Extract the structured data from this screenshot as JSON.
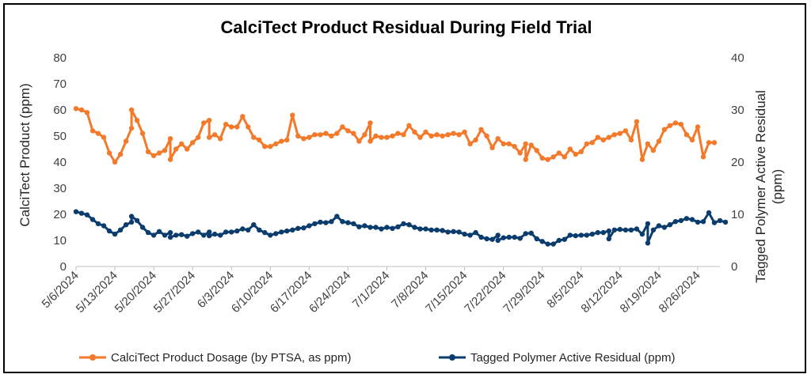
{
  "chart_data": {
    "type": "line",
    "title": "CalciTect Product Residual During Field Trial",
    "ylabel": "CalciTect Product (ppm)",
    "y2label_line1": "Tagged Polymer Active Residual",
    "y2label_line2": "(ppm)",
    "ylim": [
      0,
      80
    ],
    "y2lim": [
      0,
      40
    ],
    "yticks": [
      0,
      10,
      20,
      30,
      40,
      50,
      60,
      70,
      80
    ],
    "y2ticks": [
      0,
      10,
      20,
      30,
      40
    ],
    "x_start": "5/6/2024",
    "x_end": "8/30/2024",
    "xticks": [
      "5/6/2024",
      "5/13/2024",
      "5/20/2024",
      "5/27/2024",
      "6/3/2024",
      "6/10/2024",
      "6/17/2024",
      "6/24/2024",
      "7/1/2024",
      "7/8/2024",
      "7/15/2024",
      "7/22/2024",
      "7/29/2024",
      "8/5/2024",
      "8/12/2024",
      "8/19/2024",
      "8/26/2024"
    ],
    "grid": false,
    "legend_position": "bottom",
    "series": [
      {
        "name": "CalciTect Product Dosage (by PTSA, as ppm)",
        "axis": "left",
        "color": "#F47A2B",
        "points": [
          [
            "5/6/2024",
            60.5
          ],
          [
            "5/7/2024",
            60.0
          ],
          [
            "5/8/2024",
            59.0
          ],
          [
            "5/9/2024",
            52.0
          ],
          [
            "5/10/2024",
            51.0
          ],
          [
            "5/11/2024",
            49.5
          ],
          [
            "5/12/2024",
            43.5
          ],
          [
            "5/13/2024",
            40.0
          ],
          [
            "5/14/2024",
            43.0
          ],
          [
            "5/15/2024",
            48.0
          ],
          [
            "5/16/2024",
            53.0
          ],
          [
            "5/16/2024",
            60.0
          ],
          [
            "5/17/2024",
            56.0
          ],
          [
            "5/18/2024",
            51.0
          ],
          [
            "5/19/2024",
            44.0
          ],
          [
            "5/20/2024",
            42.5
          ],
          [
            "5/21/2024",
            43.5
          ],
          [
            "5/22/2024",
            44.5
          ],
          [
            "5/23/2024",
            49.0
          ],
          [
            "5/23/2024",
            41.0
          ],
          [
            "5/24/2024",
            45.0
          ],
          [
            "5/25/2024",
            47.0
          ],
          [
            "5/26/2024",
            45.0
          ],
          [
            "5/27/2024",
            47.5
          ],
          [
            "5/28/2024",
            49.5
          ],
          [
            "5/29/2024",
            55.0
          ],
          [
            "5/30/2024",
            56.0
          ],
          [
            "5/30/2024",
            49.5
          ],
          [
            "5/31/2024",
            50.5
          ],
          [
            "6/1/2024",
            49.0
          ],
          [
            "6/2/2024",
            54.5
          ],
          [
            "6/3/2024",
            53.5
          ],
          [
            "6/4/2024",
            53.5
          ],
          [
            "6/5/2024",
            57.5
          ],
          [
            "6/6/2024",
            53.5
          ],
          [
            "6/7/2024",
            49.5
          ],
          [
            "6/8/2024",
            48.5
          ],
          [
            "6/9/2024",
            46.0
          ],
          [
            "6/10/2024",
            46.0
          ],
          [
            "6/11/2024",
            47.0
          ],
          [
            "6/12/2024",
            48.0
          ],
          [
            "6/13/2024",
            48.5
          ],
          [
            "6/14/2024",
            58.0
          ],
          [
            "6/15/2024",
            50.0
          ],
          [
            "6/16/2024",
            49.0
          ],
          [
            "6/17/2024",
            49.5
          ],
          [
            "6/18/2024",
            50.5
          ],
          [
            "6/19/2024",
            50.5
          ],
          [
            "6/20/2024",
            51.0
          ],
          [
            "6/21/2024",
            50.0
          ],
          [
            "6/22/2024",
            51.0
          ],
          [
            "6/23/2024",
            53.5
          ],
          [
            "6/24/2024",
            52.0
          ],
          [
            "6/25/2024",
            51.0
          ],
          [
            "6/26/2024",
            48.0
          ],
          [
            "6/27/2024",
            50.5
          ],
          [
            "6/28/2024",
            55.0
          ],
          [
            "6/28/2024",
            48.0
          ],
          [
            "6/29/2024",
            50.0
          ],
          [
            "6/30/2024",
            49.5
          ],
          [
            "7/1/2024",
            49.5
          ],
          [
            "7/2/2024",
            50.0
          ],
          [
            "7/3/2024",
            51.0
          ],
          [
            "7/4/2024",
            50.5
          ],
          [
            "7/5/2024",
            54.0
          ],
          [
            "7/6/2024",
            51.5
          ],
          [
            "7/7/2024",
            49.5
          ],
          [
            "7/8/2024",
            51.5
          ],
          [
            "7/9/2024",
            50.0
          ],
          [
            "7/10/2024",
            50.5
          ],
          [
            "7/11/2024",
            50.0
          ],
          [
            "7/12/2024",
            50.5
          ],
          [
            "7/13/2024",
            51.0
          ],
          [
            "7/14/2024",
            50.5
          ],
          [
            "7/15/2024",
            51.5
          ],
          [
            "7/16/2024",
            47.0
          ],
          [
            "7/17/2024",
            48.5
          ],
          [
            "7/18/2024",
            52.5
          ],
          [
            "7/19/2024",
            50.0
          ],
          [
            "7/20/2024",
            45.5
          ],
          [
            "7/21/2024",
            49.0
          ],
          [
            "7/22/2024",
            47.0
          ],
          [
            "7/23/2024",
            47.0
          ],
          [
            "7/24/2024",
            46.0
          ],
          [
            "7/25/2024",
            43.5
          ],
          [
            "7/26/2024",
            47.0
          ],
          [
            "7/26/2024",
            41.0
          ],
          [
            "7/27/2024",
            46.5
          ],
          [
            "7/28/2024",
            44.5
          ],
          [
            "7/29/2024",
            41.5
          ],
          [
            "7/30/2024",
            41.0
          ],
          [
            "7/31/2024",
            42.0
          ],
          [
            "8/1/2024",
            43.5
          ],
          [
            "8/2/2024",
            42.0
          ],
          [
            "8/3/2024",
            45.0
          ],
          [
            "8/4/2024",
            43.0
          ],
          [
            "8/5/2024",
            44.0
          ],
          [
            "8/6/2024",
            47.0
          ],
          [
            "8/7/2024",
            47.5
          ],
          [
            "8/8/2024",
            49.5
          ],
          [
            "8/9/2024",
            48.5
          ],
          [
            "8/10/2024",
            49.5
          ],
          [
            "8/11/2024",
            50.5
          ],
          [
            "8/12/2024",
            51.0
          ],
          [
            "8/13/2024",
            52.0
          ],
          [
            "8/14/2024",
            48.5
          ],
          [
            "8/15/2024",
            55.5
          ],
          [
            "8/16/2024",
            41.0
          ],
          [
            "8/17/2024",
            47.0
          ],
          [
            "8/18/2024",
            44.5
          ],
          [
            "8/19/2024",
            48.0
          ],
          [
            "8/20/2024",
            52.5
          ],
          [
            "8/21/2024",
            54.0
          ],
          [
            "8/22/2024",
            55.0
          ],
          [
            "8/23/2024",
            54.5
          ],
          [
            "8/24/2024",
            50.5
          ],
          [
            "8/25/2024",
            48.5
          ],
          [
            "8/26/2024",
            53.5
          ],
          [
            "8/27/2024",
            42.0
          ],
          [
            "8/28/2024",
            47.5
          ],
          [
            "8/29/2024",
            47.5
          ]
        ]
      },
      {
        "name": "Tagged Polymer Active Residual (ppm)",
        "axis": "right",
        "color": "#0B3C6E",
        "points": [
          [
            "5/6/2024",
            10.5
          ],
          [
            "5/7/2024",
            10.2
          ],
          [
            "5/8/2024",
            9.9
          ],
          [
            "5/9/2024",
            9.0
          ],
          [
            "5/10/2024",
            8.2
          ],
          [
            "5/11/2024",
            7.8
          ],
          [
            "5/12/2024",
            6.8
          ],
          [
            "5/13/2024",
            6.2
          ],
          [
            "5/14/2024",
            7.0
          ],
          [
            "5/15/2024",
            8.0
          ],
          [
            "5/16/2024",
            8.5
          ],
          [
            "5/16/2024",
            9.6
          ],
          [
            "5/17/2024",
            8.8
          ],
          [
            "5/18/2024",
            7.5
          ],
          [
            "5/19/2024",
            6.5
          ],
          [
            "5/20/2024",
            6.0
          ],
          [
            "5/21/2024",
            6.7
          ],
          [
            "5/22/2024",
            6.0
          ],
          [
            "5/23/2024",
            6.5
          ],
          [
            "5/23/2024",
            5.6
          ],
          [
            "5/24/2024",
            6.0
          ],
          [
            "5/25/2024",
            6.1
          ],
          [
            "5/26/2024",
            5.8
          ],
          [
            "5/27/2024",
            6.3
          ],
          [
            "5/28/2024",
            6.6
          ],
          [
            "5/29/2024",
            6.0
          ],
          [
            "5/30/2024",
            6.6
          ],
          [
            "5/30/2024",
            5.9
          ],
          [
            "5/31/2024",
            6.2
          ],
          [
            "6/1/2024",
            6.0
          ],
          [
            "6/2/2024",
            6.6
          ],
          [
            "6/3/2024",
            6.6
          ],
          [
            "6/4/2024",
            6.8
          ],
          [
            "6/5/2024",
            7.2
          ],
          [
            "6/6/2024",
            7.0
          ],
          [
            "6/7/2024",
            8.0
          ],
          [
            "6/8/2024",
            7.0
          ],
          [
            "6/9/2024",
            6.5
          ],
          [
            "6/10/2024",
            6.0
          ],
          [
            "6/11/2024",
            6.3
          ],
          [
            "6/12/2024",
            6.6
          ],
          [
            "6/13/2024",
            6.8
          ],
          [
            "6/14/2024",
            7.0
          ],
          [
            "6/15/2024",
            7.3
          ],
          [
            "6/16/2024",
            7.4
          ],
          [
            "6/17/2024",
            7.8
          ],
          [
            "6/18/2024",
            8.2
          ],
          [
            "6/19/2024",
            8.5
          ],
          [
            "6/20/2024",
            8.4
          ],
          [
            "6/21/2024",
            8.6
          ],
          [
            "6/22/2024",
            9.6
          ],
          [
            "6/23/2024",
            8.6
          ],
          [
            "6/24/2024",
            8.4
          ],
          [
            "6/25/2024",
            8.2
          ],
          [
            "6/26/2024",
            7.6
          ],
          [
            "6/27/2024",
            7.8
          ],
          [
            "6/28/2024",
            7.5
          ],
          [
            "6/29/2024",
            7.5
          ],
          [
            "6/30/2024",
            7.2
          ],
          [
            "7/1/2024",
            7.5
          ],
          [
            "7/2/2024",
            7.3
          ],
          [
            "7/3/2024",
            7.6
          ],
          [
            "7/4/2024",
            8.2
          ],
          [
            "7/5/2024",
            8.0
          ],
          [
            "7/6/2024",
            7.5
          ],
          [
            "7/7/2024",
            7.2
          ],
          [
            "7/8/2024",
            7.2
          ],
          [
            "7/9/2024",
            7.0
          ],
          [
            "7/10/2024",
            7.0
          ],
          [
            "7/11/2024",
            6.9
          ],
          [
            "7/12/2024",
            6.6
          ],
          [
            "7/13/2024",
            6.7
          ],
          [
            "7/14/2024",
            6.6
          ],
          [
            "7/15/2024",
            6.2
          ],
          [
            "7/16/2024",
            6.0
          ],
          [
            "7/17/2024",
            6.5
          ],
          [
            "7/18/2024",
            5.6
          ],
          [
            "7/19/2024",
            5.3
          ],
          [
            "7/20/2024",
            5.2
          ],
          [
            "7/21/2024",
            6.0
          ],
          [
            "7/21/2024",
            5.0
          ],
          [
            "7/22/2024",
            5.5
          ],
          [
            "7/23/2024",
            5.6
          ],
          [
            "7/24/2024",
            5.6
          ],
          [
            "7/25/2024",
            5.4
          ],
          [
            "7/26/2024",
            6.3
          ],
          [
            "7/27/2024",
            6.4
          ],
          [
            "7/28/2024",
            5.3
          ],
          [
            "7/29/2024",
            4.8
          ],
          [
            "7/30/2024",
            4.3
          ],
          [
            "7/31/2024",
            4.3
          ],
          [
            "8/1/2024",
            5.0
          ],
          [
            "8/2/2024",
            5.2
          ],
          [
            "8/3/2024",
            6.0
          ],
          [
            "8/4/2024",
            5.9
          ],
          [
            "8/5/2024",
            6.0
          ],
          [
            "8/6/2024",
            6.0
          ],
          [
            "8/7/2024",
            6.2
          ],
          [
            "8/8/2024",
            6.5
          ],
          [
            "8/9/2024",
            6.5
          ],
          [
            "8/10/2024",
            6.8
          ],
          [
            "8/10/2024",
            5.3
          ],
          [
            "8/11/2024",
            7.0
          ],
          [
            "8/12/2024",
            7.1
          ],
          [
            "8/13/2024",
            7.0
          ],
          [
            "8/14/2024",
            7.0
          ],
          [
            "8/15/2024",
            7.2
          ],
          [
            "8/16/2024",
            6.2
          ],
          [
            "8/17/2024",
            8.2
          ],
          [
            "8/17/2024",
            4.5
          ],
          [
            "8/18/2024",
            7.0
          ],
          [
            "8/19/2024",
            7.8
          ],
          [
            "8/20/2024",
            7.5
          ],
          [
            "8/21/2024",
            8.0
          ],
          [
            "8/22/2024",
            8.6
          ],
          [
            "8/23/2024",
            8.8
          ],
          [
            "8/24/2024",
            9.2
          ],
          [
            "8/25/2024",
            9.0
          ],
          [
            "8/26/2024",
            8.5
          ],
          [
            "8/27/2024",
            8.6
          ],
          [
            "8/28/2024",
            10.3
          ],
          [
            "8/29/2024",
            8.4
          ],
          [
            "8/30/2024",
            8.8
          ],
          [
            "8/31/2024",
            8.5
          ]
        ]
      }
    ]
  }
}
